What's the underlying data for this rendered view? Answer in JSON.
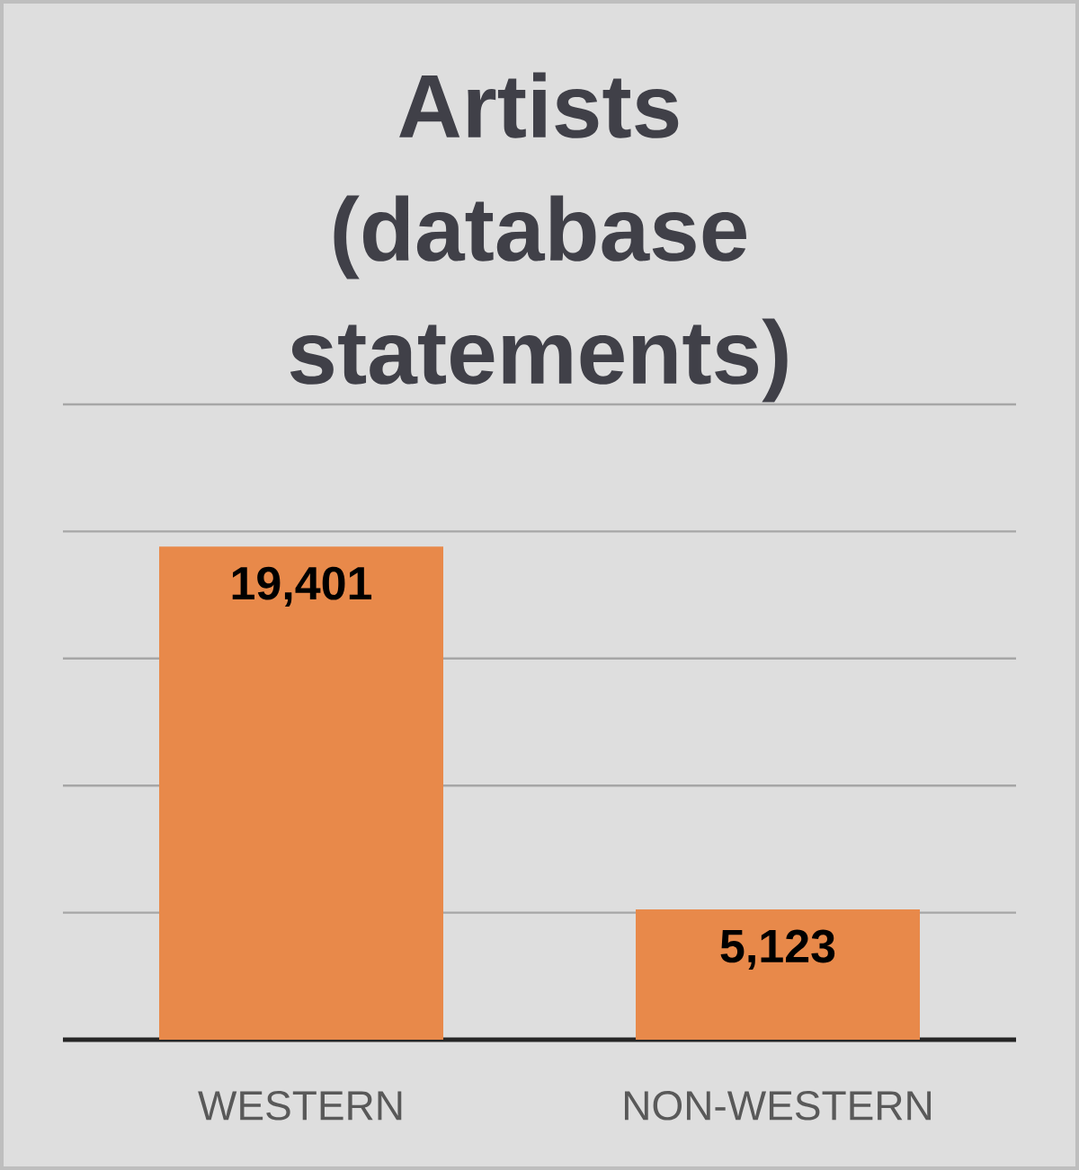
{
  "chart_data": {
    "type": "bar",
    "title": "Artists (database statements)",
    "categories": [
      "WESTERN",
      "NON-WESTERN"
    ],
    "values": [
      19401,
      5123
    ],
    "value_labels": [
      "19,401",
      "5,123"
    ],
    "color": "#e8894a",
    "ylim": [
      0,
      25000
    ],
    "yticks": [
      {
        "value": 0,
        "label": null
      },
      {
        "value": 5000,
        "label": null
      },
      {
        "value": 10000,
        "label": null
      },
      {
        "value": 15000,
        "label": null
      },
      {
        "value": 20000,
        "label": null
      },
      {
        "value": 25000,
        "label": null
      }
    ],
    "grid": "y",
    "tick_labels": "x"
  }
}
